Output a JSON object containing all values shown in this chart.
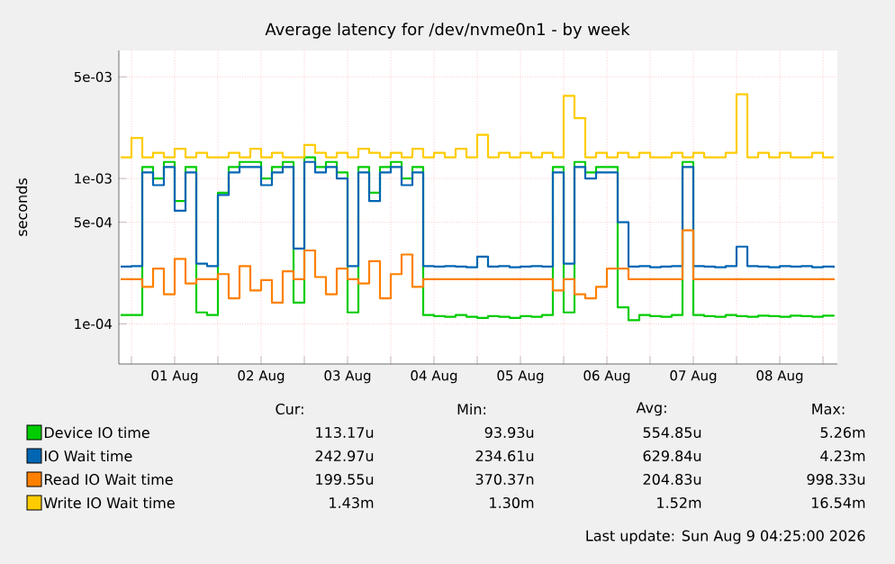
{
  "chart_data": {
    "type": "step",
    "title": "Average latency for /dev/nvme0n1 - by week",
    "ylabel": "seconds",
    "log": "y",
    "grid": true,
    "legend": "bottom",
    "x": [
      "2026-07-31T21:00",
      "2026-08-01T00:00",
      "2026-08-01T03:00",
      "2026-08-01T06:00",
      "2026-08-01T09:00",
      "2026-08-01T12:00",
      "2026-08-01T15:00",
      "2026-08-01T18:00",
      "2026-08-01T21:00",
      "2026-08-02T00:00",
      "2026-08-02T03:00",
      "2026-08-02T06:00",
      "2026-08-02T09:00",
      "2026-08-02T12:00",
      "2026-08-02T15:00",
      "2026-08-02T18:00",
      "2026-08-02T21:00",
      "2026-08-03T00:00",
      "2026-08-03T03:00",
      "2026-08-03T06:00",
      "2026-08-03T09:00",
      "2026-08-03T12:00",
      "2026-08-03T15:00",
      "2026-08-03T18:00",
      "2026-08-03T21:00",
      "2026-08-04T00:00",
      "2026-08-04T03:00",
      "2026-08-04T06:00",
      "2026-08-04T09:00",
      "2026-08-04T12:00",
      "2026-08-04T15:00",
      "2026-08-04T18:00",
      "2026-08-04T21:00",
      "2026-08-05T00:00",
      "2026-08-05T03:00",
      "2026-08-05T06:00",
      "2026-08-05T09:00",
      "2026-08-05T12:00",
      "2026-08-05T15:00",
      "2026-08-05T18:00",
      "2026-08-05T21:00",
      "2026-08-06T00:00",
      "2026-08-06T03:00",
      "2026-08-06T06:00",
      "2026-08-06T09:00",
      "2026-08-06T12:00",
      "2026-08-06T15:00",
      "2026-08-06T18:00",
      "2026-08-06T21:00",
      "2026-08-07T00:00",
      "2026-08-07T03:00",
      "2026-08-07T06:00",
      "2026-08-07T09:00",
      "2026-08-07T12:00",
      "2026-08-07T15:00",
      "2026-08-07T18:00",
      "2026-08-07T21:00",
      "2026-08-08T00:00",
      "2026-08-08T03:00",
      "2026-08-08T06:00",
      "2026-08-08T09:00",
      "2026-08-08T12:00",
      "2026-08-08T15:00",
      "2026-08-08T18:00",
      "2026-08-08T21:00",
      "2026-08-09T00:00",
      "2026-08-09T03:00"
    ],
    "xlim": [
      "2026-07-31T20:30",
      "2026-08-09T04:00"
    ],
    "xticks": [
      {
        "value": "2026-08-01T00:00",
        "label": null
      },
      {
        "value": "2026-08-01T12:00",
        "label": "01 Aug"
      },
      {
        "value": "2026-08-02T00:00",
        "label": null
      },
      {
        "value": "2026-08-02T12:00",
        "label": "02 Aug"
      },
      {
        "value": "2026-08-03T00:00",
        "label": null
      },
      {
        "value": "2026-08-03T12:00",
        "label": "03 Aug"
      },
      {
        "value": "2026-08-04T00:00",
        "label": null
      },
      {
        "value": "2026-08-04T12:00",
        "label": "04 Aug"
      },
      {
        "value": "2026-08-05T00:00",
        "label": null
      },
      {
        "value": "2026-08-05T12:00",
        "label": "05 Aug"
      },
      {
        "value": "2026-08-06T00:00",
        "label": null
      },
      {
        "value": "2026-08-06T12:00",
        "label": "06 Aug"
      },
      {
        "value": "2026-08-07T00:00",
        "label": null
      },
      {
        "value": "2026-08-07T12:00",
        "label": "07 Aug"
      },
      {
        "value": "2026-08-08T00:00",
        "label": null
      },
      {
        "value": "2026-08-08T12:00",
        "label": "08 Aug"
      },
      {
        "value": "2026-08-09T00:00",
        "label": null
      }
    ],
    "ylim": [
      5.3e-05,
      0.0076
    ],
    "yticks": [
      {
        "value": 0.0001,
        "label": "1e-04"
      },
      {
        "value": 0.0005,
        "label": "5e-04"
      },
      {
        "value": 0.001,
        "label": "1e-03"
      },
      {
        "value": 0.005,
        "label": "5e-03"
      }
    ],
    "series": [
      {
        "name": "Device IO time",
        "color": "#00cc00",
        "values": [
          0.000115,
          0.000115,
          0.0012,
          0.001,
          0.0013,
          0.0007,
          0.0012,
          0.00012,
          0.000115,
          0.0008,
          0.0012,
          0.0013,
          0.0013,
          0.001,
          0.0012,
          0.0013,
          0.00014,
          0.0014,
          0.0012,
          0.0013,
          0.0011,
          0.00012,
          0.0012,
          0.0008,
          0.0012,
          0.0013,
          0.001,
          0.0012,
          0.000115,
          0.000113,
          0.000112,
          0.000115,
          0.000112,
          0.00011,
          0.000113,
          0.000112,
          0.00011,
          0.000113,
          0.000112,
          0.000115,
          0.0012,
          0.00012,
          0.0013,
          0.0011,
          0.0012,
          0.0012,
          0.00013,
          0.000106,
          0.000115,
          0.000113,
          0.000112,
          0.000115,
          0.0013,
          0.000115,
          0.000113,
          0.000112,
          0.000115,
          0.000113,
          0.000112,
          0.000114,
          0.000113,
          0.000112,
          0.000114,
          0.000113,
          0.000112,
          0.000114,
          0.000113
        ]
      },
      {
        "name": "IO Wait time",
        "color": "#0066b3",
        "values": [
          0.000248,
          0.00025,
          0.0011,
          0.0009,
          0.0012,
          0.0006,
          0.0011,
          0.00026,
          0.00025,
          0.00077,
          0.0011,
          0.0012,
          0.0012,
          0.0009,
          0.0011,
          0.0012,
          0.00033,
          0.0013,
          0.0011,
          0.0012,
          0.001,
          0.00025,
          0.0011,
          0.0007,
          0.0011,
          0.0012,
          0.0009,
          0.0011,
          0.00025,
          0.000248,
          0.00025,
          0.000248,
          0.000245,
          0.00029,
          0.000248,
          0.00025,
          0.000245,
          0.000248,
          0.00025,
          0.000248,
          0.0011,
          0.00026,
          0.0012,
          0.001,
          0.0011,
          0.0011,
          0.0005,
          0.000248,
          0.00025,
          0.000245,
          0.000248,
          0.00025,
          0.0012,
          0.00025,
          0.000248,
          0.000245,
          0.00025,
          0.00034,
          0.00025,
          0.000248,
          0.000245,
          0.00025,
          0.000248,
          0.00025,
          0.000245,
          0.000248,
          0.000243
        ]
      },
      {
        "name": "Read IO Wait time",
        "color": "#ff8000",
        "values": [
          0.000203,
          0.000203,
          0.00018,
          0.00024,
          0.00016,
          0.00028,
          0.00019,
          0.000203,
          0.000203,
          0.00022,
          0.00015,
          0.00025,
          0.00017,
          0.0002,
          0.00014,
          0.00023,
          0.000203,
          0.00032,
          0.00021,
          0.00016,
          0.00024,
          0.000203,
          0.00019,
          0.00027,
          0.00015,
          0.00022,
          0.0003,
          0.00018,
          0.000203,
          0.000203,
          0.000203,
          0.000203,
          0.000203,
          0.000203,
          0.000203,
          0.000203,
          0.000203,
          0.000203,
          0.000203,
          0.000203,
          0.00017,
          0.000203,
          0.00016,
          0.00015,
          0.00018,
          0.00024,
          0.00024,
          0.000203,
          0.000203,
          0.000203,
          0.000203,
          0.000203,
          0.00044,
          0.000203,
          0.000203,
          0.000203,
          0.000203,
          0.000203,
          0.000203,
          0.000203,
          0.000203,
          0.000203,
          0.000203,
          0.000203,
          0.000203,
          0.000203,
          0.0002
        ]
      },
      {
        "name": "Write IO Wait time",
        "color": "#ffcc00",
        "values": [
          0.0014,
          0.0019,
          0.0014,
          0.0015,
          0.0014,
          0.0016,
          0.0014,
          0.0015,
          0.0014,
          0.0014,
          0.0015,
          0.0014,
          0.0016,
          0.0014,
          0.0015,
          0.0014,
          0.0014,
          0.0017,
          0.0015,
          0.0014,
          0.0015,
          0.0014,
          0.0016,
          0.0015,
          0.0014,
          0.0015,
          0.0014,
          0.0016,
          0.0014,
          0.0015,
          0.0014,
          0.0016,
          0.0014,
          0.002,
          0.0014,
          0.0015,
          0.0014,
          0.0015,
          0.0014,
          0.0015,
          0.0014,
          0.0037,
          0.0026,
          0.0014,
          0.0015,
          0.0014,
          0.0015,
          0.0014,
          0.0015,
          0.0014,
          0.0014,
          0.0015,
          0.0014,
          0.0015,
          0.0014,
          0.0014,
          0.0015,
          0.0038,
          0.0014,
          0.0015,
          0.0014,
          0.0015,
          0.0014,
          0.0014,
          0.0015,
          0.0014,
          0.0014
        ]
      }
    ],
    "annotations": [
      "Cur:",
      "Min:",
      "Avg:",
      "Max:",
      "113.17u",
      "93.93u",
      "554.85u",
      "5.26m",
      "242.97u",
      "234.61u",
      "629.84u",
      "4.23m",
      "199.55u",
      "370.37n",
      "204.83u",
      "998.33u",
      "1.43m",
      "1.30m",
      "1.52m",
      "16.54m",
      "Last update: Sun Aug  9 04:25:00 2026"
    ]
  }
}
